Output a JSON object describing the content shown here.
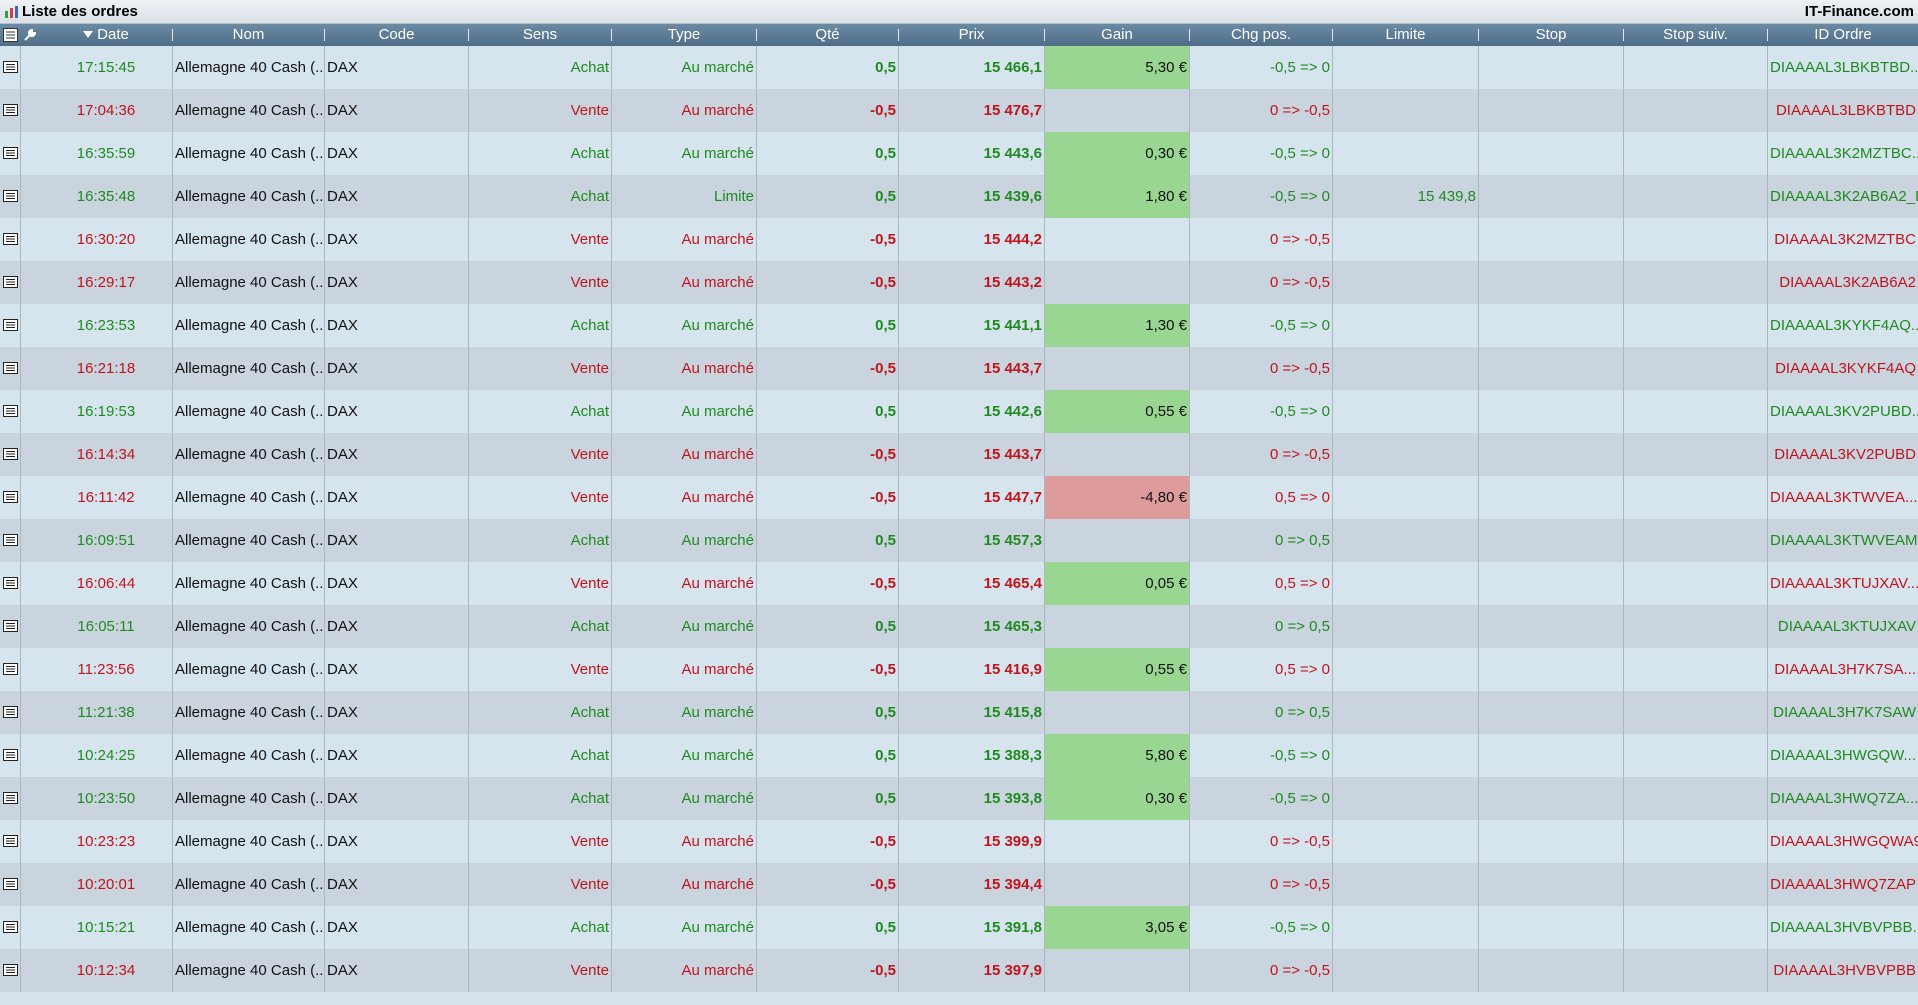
{
  "window": {
    "title": "Liste des ordres",
    "brand": "IT-Finance.com"
  },
  "columns": {
    "date": "Date",
    "nom": "Nom",
    "code": "Code",
    "sens": "Sens",
    "type": "Type",
    "qte": "Qté",
    "prix": "Prix",
    "gain": "Gain",
    "chg": "Chg pos.",
    "limite": "Limite",
    "stop": "Stop",
    "stopsuiv": "Stop suiv.",
    "id": "ID Ordre"
  },
  "rows": [
    {
      "date": "17:15:45",
      "nom": "Allemagne 40 Cash (...",
      "code": "DAX",
      "sens": "Achat",
      "type": "Au marché",
      "qte": "0,5",
      "prix": "15 466,1",
      "gain": "5,30 €",
      "gain_state": "pos",
      "chg": "-0,5 => 0",
      "limite": "",
      "stop": "",
      "stopsuiv": "",
      "id": "DIAAAAL3LBKBTBD...",
      "side": "buy"
    },
    {
      "date": "17:04:36",
      "nom": "Allemagne 40 Cash (...",
      "code": "DAX",
      "sens": "Vente",
      "type": "Au marché",
      "qte": "-0,5",
      "prix": "15 476,7",
      "gain": "",
      "gain_state": "none",
      "chg": "0 => -0,5",
      "limite": "",
      "stop": "",
      "stopsuiv": "",
      "id": "DIAAAAL3LBKBTBD",
      "side": "sell"
    },
    {
      "date": "16:35:59",
      "nom": "Allemagne 40 Cash (...",
      "code": "DAX",
      "sens": "Achat",
      "type": "Au marché",
      "qte": "0,5",
      "prix": "15 443,6",
      "gain": "0,30 €",
      "gain_state": "pos",
      "chg": "-0,5 => 0",
      "limite": "",
      "stop": "",
      "stopsuiv": "",
      "id": "DIAAAAL3K2MZTBC...",
      "side": "buy"
    },
    {
      "date": "16:35:48",
      "nom": "Allemagne 40 Cash (...",
      "code": "DAX",
      "sens": "Achat",
      "type": "Limite",
      "qte": "0,5",
      "prix": "15 439,6",
      "gain": "1,80 €",
      "gain_state": "pos",
      "chg": "-0,5 => 0",
      "limite": "15 439,8",
      "stop": "",
      "stopsuiv": "",
      "id": "DIAAAAL3K2AB6A2_L",
      "side": "buy"
    },
    {
      "date": "16:30:20",
      "nom": "Allemagne 40 Cash (...",
      "code": "DAX",
      "sens": "Vente",
      "type": "Au marché",
      "qte": "-0,5",
      "prix": "15 444,2",
      "gain": "",
      "gain_state": "none",
      "chg": "0 => -0,5",
      "limite": "",
      "stop": "",
      "stopsuiv": "",
      "id": "DIAAAAL3K2MZTBC",
      "side": "sell"
    },
    {
      "date": "16:29:17",
      "nom": "Allemagne 40 Cash (...",
      "code": "DAX",
      "sens": "Vente",
      "type": "Au marché",
      "qte": "-0,5",
      "prix": "15 443,2",
      "gain": "",
      "gain_state": "none",
      "chg": "0 => -0,5",
      "limite": "",
      "stop": "",
      "stopsuiv": "",
      "id": "DIAAAAL3K2AB6A2",
      "side": "sell"
    },
    {
      "date": "16:23:53",
      "nom": "Allemagne 40 Cash (...",
      "code": "DAX",
      "sens": "Achat",
      "type": "Au marché",
      "qte": "0,5",
      "prix": "15 441,1",
      "gain": "1,30 €",
      "gain_state": "pos",
      "chg": "-0,5 => 0",
      "limite": "",
      "stop": "",
      "stopsuiv": "",
      "id": "DIAAAAL3KYKF4AQ...",
      "side": "buy"
    },
    {
      "date": "16:21:18",
      "nom": "Allemagne 40 Cash (...",
      "code": "DAX",
      "sens": "Vente",
      "type": "Au marché",
      "qte": "-0,5",
      "prix": "15 443,7",
      "gain": "",
      "gain_state": "none",
      "chg": "0 => -0,5",
      "limite": "",
      "stop": "",
      "stopsuiv": "",
      "id": "DIAAAAL3KYKF4AQ",
      "side": "sell"
    },
    {
      "date": "16:19:53",
      "nom": "Allemagne 40 Cash (...",
      "code": "DAX",
      "sens": "Achat",
      "type": "Au marché",
      "qte": "0,5",
      "prix": "15 442,6",
      "gain": "0,55 €",
      "gain_state": "pos",
      "chg": "-0,5 => 0",
      "limite": "",
      "stop": "",
      "stopsuiv": "",
      "id": "DIAAAAL3KV2PUBD...",
      "side": "buy"
    },
    {
      "date": "16:14:34",
      "nom": "Allemagne 40 Cash (...",
      "code": "DAX",
      "sens": "Vente",
      "type": "Au marché",
      "qte": "-0,5",
      "prix": "15 443,7",
      "gain": "",
      "gain_state": "none",
      "chg": "0 => -0,5",
      "limite": "",
      "stop": "",
      "stopsuiv": "",
      "id": "DIAAAAL3KV2PUBD",
      "side": "sell"
    },
    {
      "date": "16:11:42",
      "nom": "Allemagne 40 Cash (...",
      "code": "DAX",
      "sens": "Vente",
      "type": "Au marché",
      "qte": "-0,5",
      "prix": "15 447,7",
      "gain": "-4,80 €",
      "gain_state": "neg",
      "chg": "0,5 => 0",
      "limite": "",
      "stop": "",
      "stopsuiv": "",
      "id": "DIAAAAL3KTWVEA...",
      "side": "sell"
    },
    {
      "date": "16:09:51",
      "nom": "Allemagne 40 Cash (...",
      "code": "DAX",
      "sens": "Achat",
      "type": "Au marché",
      "qte": "0,5",
      "prix": "15 457,3",
      "gain": "",
      "gain_state": "none",
      "chg": "0 => 0,5",
      "limite": "",
      "stop": "",
      "stopsuiv": "",
      "id": "DIAAAAL3KTWVEAM",
      "side": "buy"
    },
    {
      "date": "16:06:44",
      "nom": "Allemagne 40 Cash (...",
      "code": "DAX",
      "sens": "Vente",
      "type": "Au marché",
      "qte": "-0,5",
      "prix": "15 465,4",
      "gain": "0,05 €",
      "gain_state": "pos",
      "chg": "0,5 => 0",
      "limite": "",
      "stop": "",
      "stopsuiv": "",
      "id": "DIAAAAL3KTUJXAV...",
      "side": "sell"
    },
    {
      "date": "16:05:11",
      "nom": "Allemagne 40 Cash (...",
      "code": "DAX",
      "sens": "Achat",
      "type": "Au marché",
      "qte": "0,5",
      "prix": "15 465,3",
      "gain": "",
      "gain_state": "none",
      "chg": "0 => 0,5",
      "limite": "",
      "stop": "",
      "stopsuiv": "",
      "id": "DIAAAAL3KTUJXAV",
      "side": "buy"
    },
    {
      "date": "11:23:56",
      "nom": "Allemagne 40 Cash (...",
      "code": "DAX",
      "sens": "Vente",
      "type": "Au marché",
      "qte": "-0,5",
      "prix": "15 416,9",
      "gain": "0,55 €",
      "gain_state": "pos",
      "chg": "0,5 => 0",
      "limite": "",
      "stop": "",
      "stopsuiv": "",
      "id": "DIAAAAL3H7K7SA...",
      "side": "sell"
    },
    {
      "date": "11:21:38",
      "nom": "Allemagne 40 Cash (...",
      "code": "DAX",
      "sens": "Achat",
      "type": "Au marché",
      "qte": "0,5",
      "prix": "15 415,8",
      "gain": "",
      "gain_state": "none",
      "chg": "0 => 0,5",
      "limite": "",
      "stop": "",
      "stopsuiv": "",
      "id": "DIAAAAL3H7K7SAW",
      "side": "buy"
    },
    {
      "date": "10:24:25",
      "nom": "Allemagne 40 Cash (...",
      "code": "DAX",
      "sens": "Achat",
      "type": "Au marché",
      "qte": "0,5",
      "prix": "15 388,3",
      "gain": "5,80 €",
      "gain_state": "pos",
      "chg": "-0,5 => 0",
      "limite": "",
      "stop": "",
      "stopsuiv": "",
      "id": "DIAAAAL3HWGQW...",
      "side": "buy"
    },
    {
      "date": "10:23:50",
      "nom": "Allemagne 40 Cash (...",
      "code": "DAX",
      "sens": "Achat",
      "type": "Au marché",
      "qte": "0,5",
      "prix": "15 393,8",
      "gain": "0,30 €",
      "gain_state": "pos",
      "chg": "-0,5 => 0",
      "limite": "",
      "stop": "",
      "stopsuiv": "",
      "id": "DIAAAAL3HWQ7ZA...",
      "side": "buy"
    },
    {
      "date": "10:23:23",
      "nom": "Allemagne 40 Cash (...",
      "code": "DAX",
      "sens": "Vente",
      "type": "Au marché",
      "qte": "-0,5",
      "prix": "15 399,9",
      "gain": "",
      "gain_state": "none",
      "chg": "0 => -0,5",
      "limite": "",
      "stop": "",
      "stopsuiv": "",
      "id": "DIAAAAL3HWGQWA9",
      "side": "sell"
    },
    {
      "date": "10:20:01",
      "nom": "Allemagne 40 Cash (...",
      "code": "DAX",
      "sens": "Vente",
      "type": "Au marché",
      "qte": "-0,5",
      "prix": "15 394,4",
      "gain": "",
      "gain_state": "none",
      "chg": "0 => -0,5",
      "limite": "",
      "stop": "",
      "stopsuiv": "",
      "id": "DIAAAAL3HWQ7ZAP",
      "side": "sell"
    },
    {
      "date": "10:15:21",
      "nom": "Allemagne 40 Cash (...",
      "code": "DAX",
      "sens": "Achat",
      "type": "Au marché",
      "qte": "0,5",
      "prix": "15 391,8",
      "gain": "3,05 €",
      "gain_state": "pos",
      "chg": "-0,5 => 0",
      "limite": "",
      "stop": "",
      "stopsuiv": "",
      "id": "DIAAAAL3HVBVPBB...",
      "side": "buy"
    },
    {
      "date": "10:12:34",
      "nom": "Allemagne 40 Cash (...",
      "code": "DAX",
      "sens": "Vente",
      "type": "Au marché",
      "qte": "-0,5",
      "prix": "15 397,9",
      "gain": "",
      "gain_state": "none",
      "chg": "0 => -0,5",
      "limite": "",
      "stop": "",
      "stopsuiv": "",
      "id": "DIAAAAL3HVBVPBB",
      "side": "sell"
    }
  ],
  "icons": {
    "title": "chart-icon",
    "settings": "wrench-icon",
    "row": "order-detail-icon"
  },
  "colors": {
    "buy": "#1f8a1f",
    "sell": "#c0141c",
    "gain_pos": "#99d691",
    "gain_neg": "#dd9b9b"
  }
}
